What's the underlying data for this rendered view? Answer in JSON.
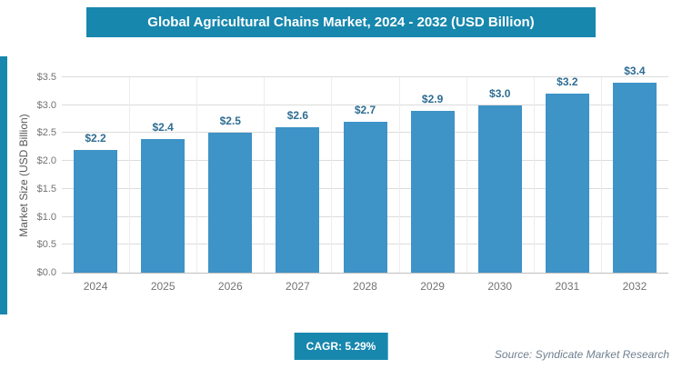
{
  "header": {
    "title": "Global Agricultural Chains Market, 2024 - 2032 (USD Billion)"
  },
  "chart_data": {
    "type": "bar",
    "title": "Global Agricultural Chains Market, 2024 - 2032 (USD Billion)",
    "categories": [
      "2024",
      "2025",
      "2026",
      "2027",
      "2028",
      "2029",
      "2030",
      "2031",
      "2032"
    ],
    "values": [
      2.2,
      2.4,
      2.5,
      2.6,
      2.7,
      2.9,
      3.0,
      3.2,
      3.4
    ],
    "data_labels": [
      "$2.2",
      "$2.4",
      "$2.5",
      "$2.6",
      "$2.7",
      "$2.9",
      "$3.0",
      "$3.2",
      "$3.4"
    ],
    "xlabel": "",
    "ylabel": "Market Size (USD Billion)",
    "ylim": [
      0,
      3.5
    ],
    "ytick_step": 0.5,
    "ytick_labels": [
      "$0.0",
      "$0.5",
      "$1.0",
      "$1.5",
      "$2.0",
      "$2.5",
      "$3.0",
      "$3.5"
    ],
    "grid": true,
    "legend": "none"
  },
  "footer": {
    "cagr": "CAGR: 5.29%",
    "source": "Source: Syndicate Market Research"
  },
  "colors": {
    "accent": "#1787AD",
    "bar": "#3E93C7",
    "grid": "#DCDCDC",
    "tick_text": "#737373",
    "value_label": "#2E6D92"
  }
}
